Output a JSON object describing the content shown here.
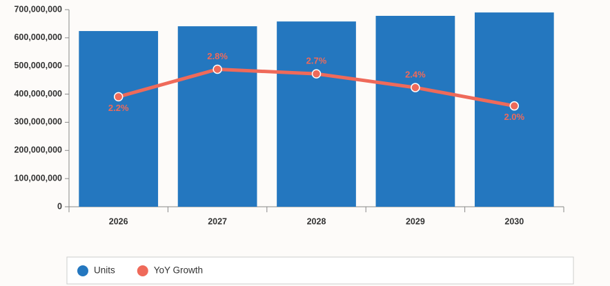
{
  "chart_data": {
    "type": "bar-line",
    "categories": [
      "2026",
      "2027",
      "2028",
      "2029",
      "2030"
    ],
    "series": [
      {
        "name": "Units",
        "type": "bar",
        "color": "#2477bf",
        "values": [
          624000000,
          641000000,
          658000000,
          678000000,
          690000000
        ]
      },
      {
        "name": "YoY Growth",
        "type": "line",
        "axis": "y2",
        "color": "#ef6a5a",
        "values": [
          2.2,
          2.8,
          2.7,
          2.4,
          2.0
        ],
        "value_labels": [
          "2.2%",
          "2.8%",
          "2.7%",
          "2.4%",
          "2.0%"
        ]
      }
    ],
    "ylim": [
      0,
      700000000
    ],
    "yticks": [
      0,
      {
        "value": 100000000,
        "label": "100,000,000"
      },
      {
        "value": 200000000,
        "label": "200,000,000"
      },
      {
        "value": 300000000,
        "label": "300,000,000"
      },
      {
        "value": 400000000,
        "label": "400,000,000"
      },
      {
        "value": 500000000,
        "label": "500,000,000"
      },
      {
        "value": 600000000,
        "label": "600,000,000"
      },
      {
        "value": 700000000,
        "label": "700,000,000"
      }
    ],
    "y2lim": [
      -0.2,
      4.1
    ],
    "legend": "bottom"
  }
}
